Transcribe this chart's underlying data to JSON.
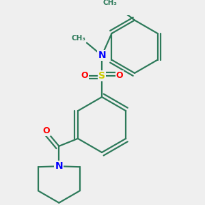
{
  "background_color": "#efefef",
  "bond_color": "#2d7a5a",
  "bond_width": 1.6,
  "atom_colors": {
    "N": "#0000ff",
    "O": "#ff0000",
    "S": "#cccc00",
    "C": "#2d7a5a"
  },
  "figsize": [
    3.0,
    3.0
  ],
  "dpi": 100
}
